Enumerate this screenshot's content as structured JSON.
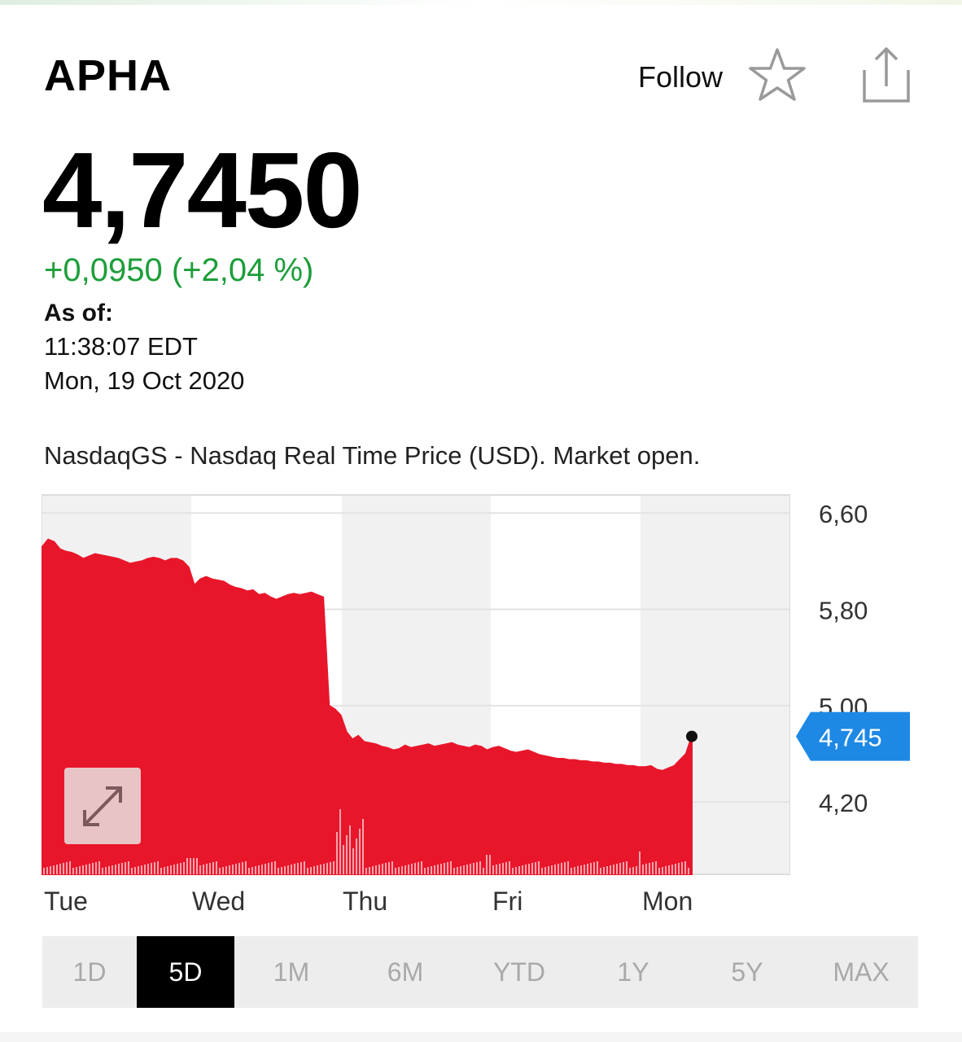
{
  "header": {
    "ticker": "APHA",
    "follow_label": "Follow"
  },
  "quote": {
    "price": "4,7450",
    "change": "+0,0950 (+2,04 %)",
    "as_of_label": "As of:",
    "time": "11:38:07 EDT",
    "date": "Mon, 19 Oct 2020",
    "source": "NasdaqGS - Nasdaq Real Time Price (USD). Market open."
  },
  "colors": {
    "price_area": "#e8162b",
    "change_positive": "#1d9e3a",
    "current_tag": "#1e88e5"
  },
  "icons": {
    "follow": "star-icon",
    "share": "share-icon",
    "expand": "expand-icon"
  },
  "chart_data": {
    "type": "area",
    "y_ticks": [
      "6,60",
      "5,80",
      "5,00",
      "4,20"
    ],
    "y_tick_values": [
      6.6,
      5.8,
      5.0,
      4.2
    ],
    "ylim": [
      3.6,
      6.75
    ],
    "x_ticks": [
      "Tue",
      "Wed",
      "Thu",
      "Fri",
      "Mon"
    ],
    "current_value_label": "4,745",
    "current_value": 4.745,
    "grid": true,
    "series": [
      {
        "values": [
          6.32,
          6.38,
          6.36,
          6.3,
          6.28,
          6.27,
          6.25,
          6.22,
          6.24,
          6.26,
          6.25,
          6.24,
          6.23,
          6.22,
          6.2,
          6.18,
          6.19,
          6.2,
          6.22,
          6.23,
          6.22,
          6.2,
          6.22,
          6.22,
          6.2,
          6.15,
          6.0,
          6.05,
          6.07,
          6.05,
          6.04,
          6.03,
          6.0,
          5.98,
          5.97,
          5.95,
          5.96,
          5.92,
          5.93,
          5.9,
          5.88,
          5.9,
          5.92,
          5.93,
          5.92,
          5.93,
          5.94,
          5.92,
          5.9,
          5.0,
          4.97,
          4.92,
          4.78,
          4.72,
          4.75,
          4.7,
          4.69,
          4.68,
          4.66,
          4.65,
          4.63,
          4.64,
          4.67,
          4.65,
          4.66,
          4.67,
          4.68,
          4.66,
          4.67,
          4.68,
          4.69,
          4.67,
          4.66,
          4.65,
          4.67,
          4.66,
          4.63,
          4.65,
          4.66,
          4.64,
          4.62,
          4.61,
          4.62,
          4.63,
          4.61,
          4.59,
          4.58,
          4.57,
          4.56,
          4.56,
          4.55,
          4.55,
          4.54,
          4.54,
          4.53,
          4.53,
          4.52,
          4.52,
          4.51,
          4.51,
          4.5,
          4.5,
          4.49,
          4.49,
          4.5,
          4.47,
          4.46,
          4.48,
          4.5,
          4.55,
          4.6,
          4.745
        ]
      }
    ]
  },
  "timeframes": [
    {
      "label": "1D",
      "active": false
    },
    {
      "label": "5D",
      "active": true
    },
    {
      "label": "1M",
      "active": false
    },
    {
      "label": "6M",
      "active": false
    },
    {
      "label": "YTD",
      "active": false
    },
    {
      "label": "1Y",
      "active": false
    },
    {
      "label": "5Y",
      "active": false
    },
    {
      "label": "MAX",
      "active": false
    }
  ]
}
